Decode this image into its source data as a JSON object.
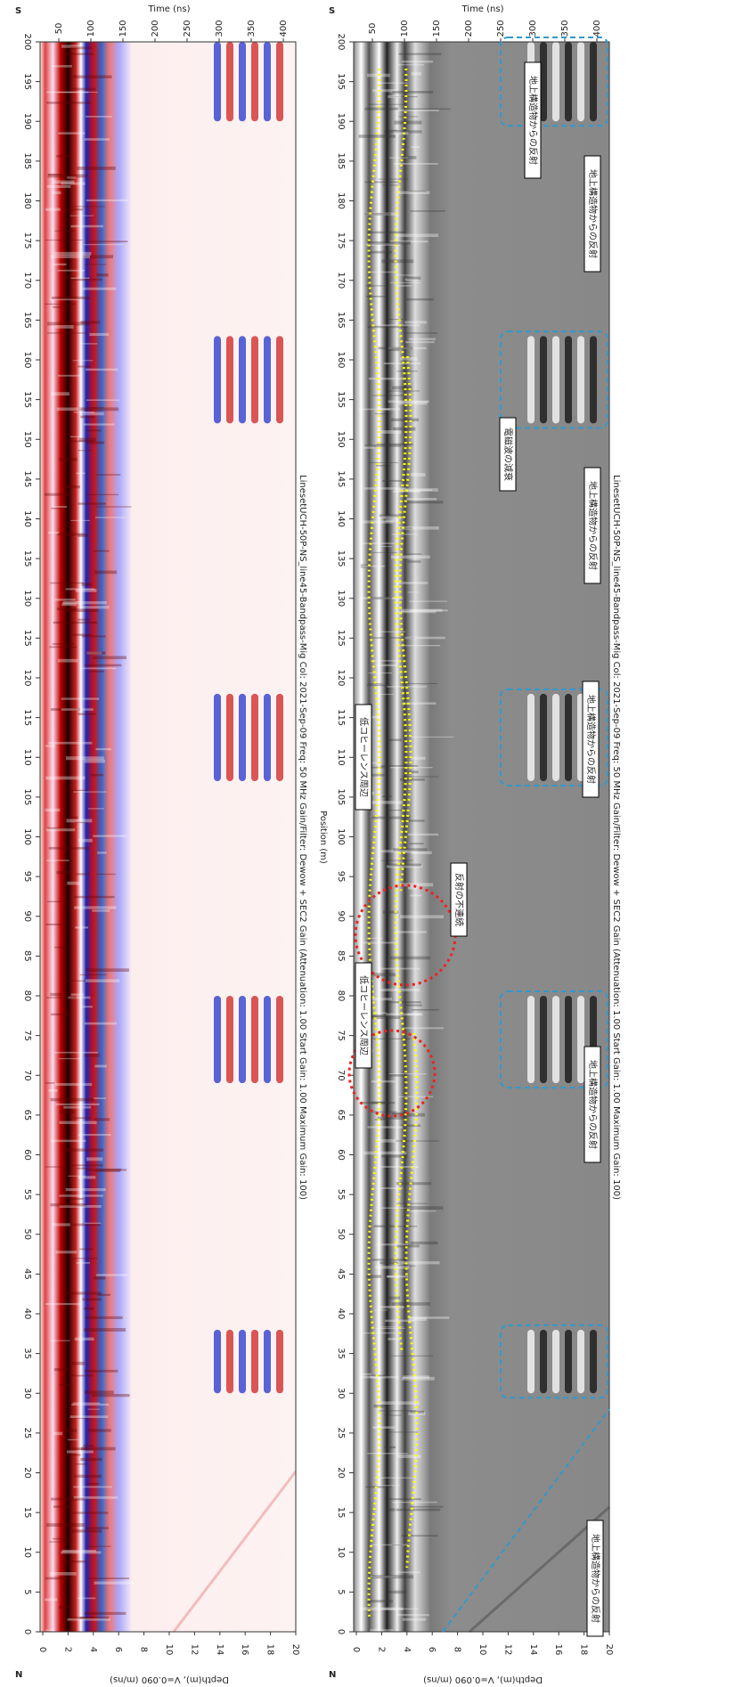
{
  "panels": [
    {
      "top_label": "S",
      "bottom_label": "N",
      "time_axis_title": "Time (ns)",
      "time_ticks": [
        50,
        100,
        150,
        200,
        250,
        300,
        350,
        400
      ],
      "position_axis_title": "Position (m)",
      "position_ticks": [
        0,
        5,
        10,
        15,
        20,
        25,
        30,
        35,
        40,
        45,
        50,
        55,
        60,
        65,
        70,
        75,
        80,
        85,
        90,
        95,
        100,
        105,
        110,
        115,
        120,
        125,
        130,
        135,
        140,
        145,
        150,
        155,
        160,
        165,
        170,
        175,
        180,
        185,
        190,
        195,
        200
      ],
      "depth_axis_title": "Depth(m), V=0.090 (m/ns)",
      "depth_ticks": [
        0,
        2,
        4,
        6,
        8,
        10,
        12,
        14,
        16,
        18,
        20
      ],
      "caption": "LinesetUCH-50P-NS_line45-Bandpass-Mig Col: 2021-Sep-09 Freq: 50 MHz Gain/Filter: Dewow + SEC2 Gain (Attenuation: 1.00 Start Gain: 1.00 Maximum Gain: 100)",
      "annotations": []
    },
    {
      "top_label": "S",
      "bottom_label": "N",
      "time_axis_title": "Time (ns)",
      "time_ticks": [
        50,
        100,
        150,
        200,
        250,
        300,
        350,
        400
      ],
      "position_ticks": [
        0,
        5,
        10,
        15,
        20,
        25,
        30,
        35,
        40,
        45,
        50,
        55,
        60,
        65,
        70,
        75,
        80,
        85,
        90,
        95,
        100,
        105,
        110,
        115,
        120,
        125,
        130,
        135,
        140,
        145,
        150,
        155,
        160,
        165,
        170,
        175,
        180,
        185,
        190,
        195,
        200
      ],
      "depth_axis_title": "Depth(m), V=0.090 (m/ns)",
      "depth_ticks": [
        0,
        2,
        4,
        6,
        8,
        10,
        12,
        14,
        16,
        18,
        20
      ],
      "caption": "LinesetUCH-50P-NS_line45-Bandpass-Mig Col: 2021-Sep-09 Freq: 50 MHz Gain/Filter: Dewow + SEC2 Gain (Attenuation: 1.00 Start Gain: 1.00 Maximum Gain: 100)",
      "annotations": [
        "地上構造物からの反射",
        "地上構造物からの反射",
        "地上構造物からの反射",
        "地上構造物からの反射",
        "地上構造物からの反射",
        "地上構造物からの反射",
        "電磁波の減衰",
        "反射の不連続",
        "低コヒーレンス周辺",
        "低コヒーレンス周辺"
      ]
    }
  ]
}
